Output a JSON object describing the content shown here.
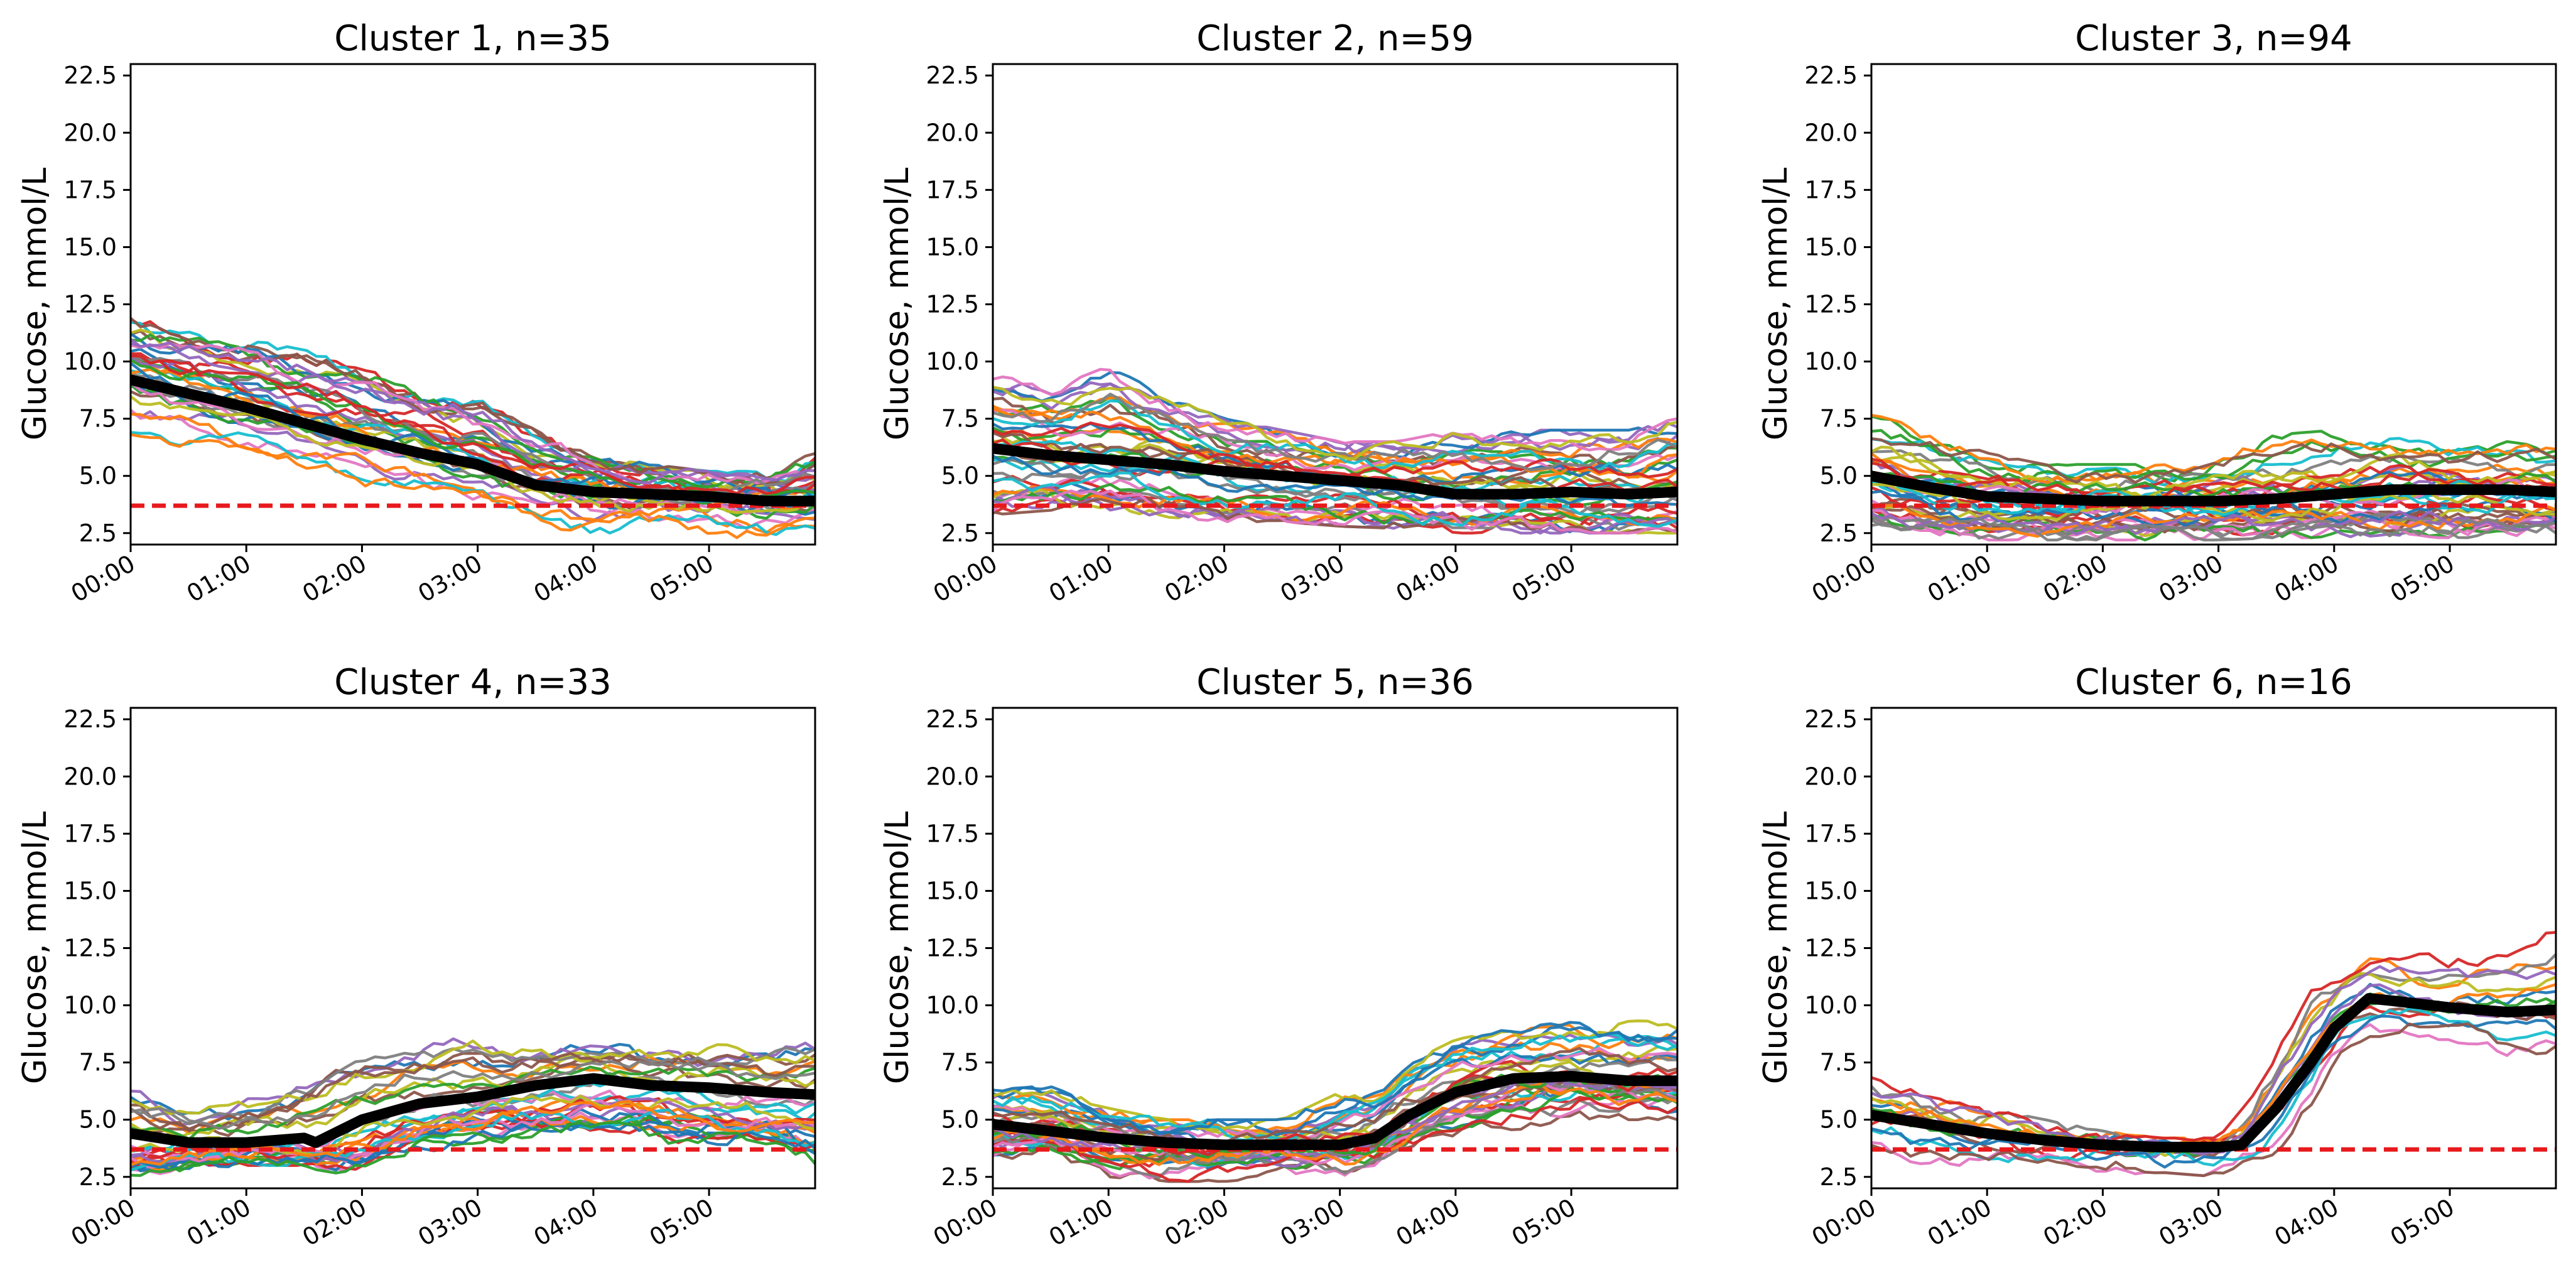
{
  "figure": {
    "background": "#ffffff"
  },
  "style": {
    "mean_color": "#000000",
    "threshold_color": "#e8191c",
    "palette": [
      "#1f77b4",
      "#ff7f0e",
      "#2ca02c",
      "#d62728",
      "#9467bd",
      "#8c564b",
      "#e377c2",
      "#7f7f7f",
      "#bcbd22",
      "#17becf"
    ]
  },
  "chart_data": [
    {
      "type": "line",
      "title": "Cluster 1, n=35",
      "ylabel": "Glucose, mmol/L",
      "xlabel": "",
      "xlim_hours": [
        0,
        5.917
      ],
      "ylim": [
        2.0,
        23.0
      ],
      "yticks": [
        2.5,
        5.0,
        7.5,
        10.0,
        12.5,
        15.0,
        17.5,
        20.0,
        22.5
      ],
      "ytick_labels": [
        "2.5",
        "5.0",
        "7.5",
        "10.0",
        "12.5",
        "15.0",
        "17.5",
        "20.0",
        "22.5"
      ],
      "xticks_hours": [
        0,
        1,
        2,
        3,
        4,
        5
      ],
      "xtick_labels": [
        "00:00",
        "01:00",
        "02:00",
        "03:00",
        "04:00",
        "05:00"
      ],
      "threshold": 3.7,
      "n_series": 35,
      "mean_series": {
        "name": "cluster mean",
        "x_hours": [
          0,
          0.5,
          1,
          1.5,
          2,
          2.5,
          3,
          3.5,
          4,
          4.5,
          5,
          5.5,
          5.9
        ],
        "values": [
          9.2,
          8.6,
          8.0,
          7.3,
          6.6,
          6.0,
          5.5,
          4.6,
          4.3,
          4.2,
          4.1,
          3.9,
          3.9
        ]
      },
      "spread": {
        "upper": [
          12.0,
          11.5,
          11.0,
          10.5,
          10.0,
          9.0,
          8.5,
          7.0,
          6.0,
          5.5,
          5.2,
          5.2,
          6.0
        ],
        "lower": [
          6.0,
          6.0,
          5.5,
          5.0,
          4.5,
          4.0,
          3.5,
          2.8,
          2.3,
          2.3,
          2.3,
          2.3,
          2.3
        ]
      }
    },
    {
      "type": "line",
      "title": "Cluster 2, n=59",
      "ylabel": "Glucose, mmol/L",
      "xlabel": "",
      "xlim_hours": [
        0,
        5.917
      ],
      "ylim": [
        2.0,
        23.0
      ],
      "yticks": [
        2.5,
        5.0,
        7.5,
        10.0,
        12.5,
        15.0,
        17.5,
        20.0,
        22.5
      ],
      "ytick_labels": [
        "2.5",
        "5.0",
        "7.5",
        "10.0",
        "12.5",
        "15.0",
        "17.5",
        "20.0",
        "22.5"
      ],
      "xticks_hours": [
        0,
        1,
        2,
        3,
        4,
        5
      ],
      "xtick_labels": [
        "00:00",
        "01:00",
        "02:00",
        "03:00",
        "04:00",
        "05:00"
      ],
      "threshold": 3.7,
      "n_series": 59,
      "mean_series": {
        "name": "cluster mean",
        "x_hours": [
          0,
          0.5,
          1,
          1.5,
          2,
          2.5,
          3,
          3.5,
          4,
          4.5,
          5,
          5.5,
          5.9
        ],
        "values": [
          6.2,
          5.9,
          5.7,
          5.5,
          5.2,
          5.0,
          4.8,
          4.6,
          4.2,
          4.2,
          4.3,
          4.2,
          4.3
        ]
      },
      "spread": {
        "upper": [
          9.5,
          8.8,
          9.8,
          8.5,
          7.5,
          7.0,
          6.5,
          6.5,
          7.0,
          7.0,
          7.0,
          7.0,
          7.5
        ],
        "lower": [
          3.3,
          3.5,
          3.5,
          3.2,
          3.0,
          3.0,
          2.8,
          2.7,
          2.5,
          2.5,
          2.5,
          2.5,
          2.5
        ]
      }
    },
    {
      "type": "line",
      "title": "Cluster 3, n=94",
      "ylabel": "Glucose, mmol/L",
      "xlabel": "",
      "xlim_hours": [
        0,
        5.917
      ],
      "ylim": [
        2.0,
        23.0
      ],
      "yticks": [
        2.5,
        5.0,
        7.5,
        10.0,
        12.5,
        15.0,
        17.5,
        20.0,
        22.5
      ],
      "ytick_labels": [
        "2.5",
        "5.0",
        "7.5",
        "10.0",
        "12.5",
        "15.0",
        "17.5",
        "20.0",
        "22.5"
      ],
      "xticks_hours": [
        0,
        1,
        2,
        3,
        4,
        5
      ],
      "xtick_labels": [
        "00:00",
        "01:00",
        "02:00",
        "03:00",
        "04:00",
        "05:00"
      ],
      "threshold": 3.7,
      "n_series": 94,
      "mean_series": {
        "name": "cluster mean",
        "x_hours": [
          0,
          0.5,
          1,
          1.5,
          2,
          2.5,
          3,
          3.5,
          4,
          4.5,
          5,
          5.5,
          5.9
        ],
        "values": [
          5.0,
          4.5,
          4.1,
          4.0,
          3.9,
          3.9,
          3.9,
          4.0,
          4.2,
          4.4,
          4.4,
          4.4,
          4.3
        ]
      },
      "spread": {
        "upper": [
          7.7,
          7.0,
          6.0,
          5.5,
          5.5,
          5.5,
          6.0,
          6.8,
          7.0,
          6.8,
          6.5,
          6.5,
          6.2
        ],
        "lower": [
          2.5,
          2.3,
          2.2,
          2.2,
          2.2,
          2.2,
          2.2,
          2.3,
          2.3,
          2.3,
          2.3,
          2.3,
          2.3
        ]
      }
    },
    {
      "type": "line",
      "title": "Cluster 4, n=33",
      "ylabel": "Glucose, mmol/L",
      "xlabel": "",
      "xlim_hours": [
        0,
        5.917
      ],
      "ylim": [
        2.0,
        23.0
      ],
      "yticks": [
        2.5,
        5.0,
        7.5,
        10.0,
        12.5,
        15.0,
        17.5,
        20.0,
        22.5
      ],
      "ytick_labels": [
        "2.5",
        "5.0",
        "7.5",
        "10.0",
        "12.5",
        "15.0",
        "17.5",
        "20.0",
        "22.5"
      ],
      "xticks_hours": [
        0,
        1,
        2,
        3,
        4,
        5
      ],
      "xtick_labels": [
        "00:00",
        "01:00",
        "02:00",
        "03:00",
        "04:00",
        "05:00"
      ],
      "threshold": 3.7,
      "n_series": 33,
      "mean_series": {
        "name": "cluster mean",
        "x_hours": [
          0,
          0.5,
          1,
          1.5,
          1.6,
          2,
          2.5,
          3,
          3.5,
          4,
          4.5,
          5,
          5.5,
          5.9
        ],
        "values": [
          4.4,
          4.0,
          4.0,
          4.2,
          4.0,
          5.0,
          5.7,
          6.0,
          6.5,
          6.8,
          6.5,
          6.4,
          6.2,
          6.1
        ]
      },
      "spread": {
        "upper": [
          6.5,
          5.5,
          6.0,
          7.0,
          7.5,
          8.2,
          8.5,
          8.8,
          8.5,
          8.5,
          8.3,
          8.3,
          8.2,
          8.8
        ],
        "lower": [
          2.3,
          2.6,
          3.0,
          3.0,
          2.8,
          2.5,
          3.5,
          4.0,
          4.0,
          4.0,
          4.0,
          3.5,
          3.5,
          2.8
        ]
      }
    },
    {
      "type": "line",
      "title": "Cluster 5, n=36",
      "ylabel": "Glucose, mmol/L",
      "xlabel": "",
      "xlim_hours": [
        0,
        5.917
      ],
      "ylim": [
        2.0,
        23.0
      ],
      "yticks": [
        2.5,
        5.0,
        7.5,
        10.0,
        12.5,
        15.0,
        17.5,
        20.0,
        22.5
      ],
      "ytick_labels": [
        "2.5",
        "5.0",
        "7.5",
        "10.0",
        "12.5",
        "15.0",
        "17.5",
        "20.0",
        "22.5"
      ],
      "xticks_hours": [
        0,
        1,
        2,
        3,
        4,
        5
      ],
      "xtick_labels": [
        "00:00",
        "01:00",
        "02:00",
        "03:00",
        "04:00",
        "05:00"
      ],
      "threshold": 3.7,
      "n_series": 36,
      "mean_series": {
        "name": "cluster mean",
        "x_hours": [
          0,
          0.5,
          1,
          1.5,
          2,
          2.5,
          3,
          3.3,
          3.6,
          4,
          4.5,
          5,
          5.5,
          5.9
        ],
        "values": [
          4.8,
          4.5,
          4.2,
          4.0,
          3.9,
          3.9,
          3.9,
          4.2,
          5.2,
          6.2,
          6.8,
          6.9,
          6.7,
          6.7
        ]
      },
      "spread": {
        "upper": [
          6.3,
          6.5,
          5.5,
          5.0,
          5.0,
          5.0,
          6.2,
          6.5,
          7.5,
          8.5,
          9.0,
          9.3,
          9.3,
          9.4
        ],
        "lower": [
          3.0,
          3.5,
          2.5,
          2.3,
          2.3,
          2.5,
          2.5,
          3.0,
          3.5,
          4.0,
          4.5,
          5.0,
          5.0,
          5.0
        ]
      }
    },
    {
      "type": "line",
      "title": "Cluster 6, n=16",
      "ylabel": "Glucose, mmol/L",
      "xlabel": "",
      "xlim_hours": [
        0,
        5.917
      ],
      "ylim": [
        2.0,
        23.0
      ],
      "yticks": [
        2.5,
        5.0,
        7.5,
        10.0,
        12.5,
        15.0,
        17.5,
        20.0,
        22.5
      ],
      "ytick_labels": [
        "2.5",
        "5.0",
        "7.5",
        "10.0",
        "12.5",
        "15.0",
        "17.5",
        "20.0",
        "22.5"
      ],
      "xticks_hours": [
        0,
        1,
        2,
        3,
        4,
        5
      ],
      "xtick_labels": [
        "00:00",
        "01:00",
        "02:00",
        "03:00",
        "04:00",
        "05:00"
      ],
      "threshold": 3.7,
      "n_series": 16,
      "mean_series": {
        "name": "cluster mean",
        "x_hours": [
          0,
          0.5,
          1,
          1.5,
          2,
          2.5,
          3,
          3.2,
          3.5,
          3.8,
          4,
          4.3,
          4.5,
          5,
          5.5,
          5.9
        ],
        "values": [
          5.2,
          4.8,
          4.4,
          4.1,
          3.9,
          3.8,
          3.8,
          3.9,
          5.5,
          7.5,
          9.0,
          10.3,
          10.2,
          9.9,
          9.7,
          9.8
        ]
      },
      "spread": {
        "upper": [
          7.0,
          6.0,
          5.5,
          5.0,
          4.5,
          4.2,
          4.2,
          5.5,
          8.0,
          11.0,
          11.5,
          12.5,
          12.5,
          12.3,
          12.5,
          13.3
        ],
        "lower": [
          3.5,
          3.0,
          3.0,
          2.8,
          2.5,
          2.7,
          2.5,
          3.0,
          3.5,
          5.5,
          7.5,
          8.5,
          8.5,
          8.5,
          7.5,
          7.5
        ]
      }
    }
  ]
}
